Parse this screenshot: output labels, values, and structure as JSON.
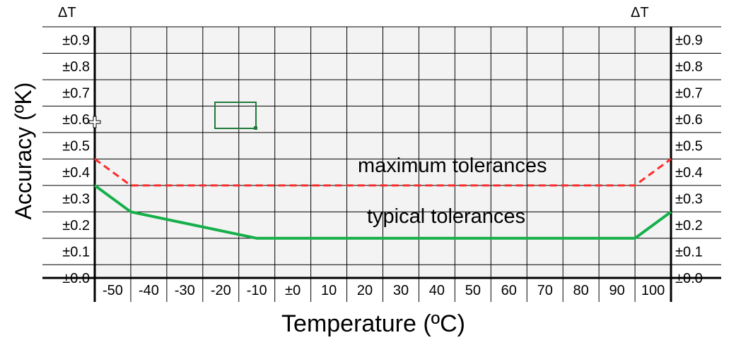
{
  "chart_data": {
    "type": "line",
    "xlabel": "Temperature (ºC)",
    "ylabel": "Accuracy (ºK)",
    "delta_label_left": "ΔT",
    "delta_label_right": "ΔT",
    "x_ticks": [
      "-50",
      "-40",
      "-30",
      "-20",
      "-10",
      "±0",
      "10",
      "20",
      "30",
      "40",
      "50",
      "60",
      "70",
      "80",
      "90",
      "100"
    ],
    "y_ticks": [
      "±0.0",
      "±0.1",
      "±0.2",
      "±0.3",
      "±0.4",
      "±0.5",
      "±0.6",
      "±0.7",
      "±0.8",
      "±0.9"
    ],
    "xlim": [
      -55,
      105
    ],
    "ylim": [
      0,
      0.95
    ],
    "grid": true,
    "series": [
      {
        "name": "maximum tolerances",
        "style": "dashed",
        "color": "#ff2a2a",
        "x": [
          -55,
          -45,
          95,
          105
        ],
        "y": [
          0.45,
          0.35,
          0.35,
          0.45
        ]
      },
      {
        "name": "typical tolerances",
        "style": "solid",
        "color": "#16b04a",
        "x": [
          -55,
          -45,
          -10,
          95,
          105
        ],
        "y": [
          0.35,
          0.25,
          0.15,
          0.15,
          0.25
        ]
      }
    ],
    "colors": {
      "grid": "#000000",
      "plot_background": "#f3f3f3",
      "selection_box": "#1f7a3a"
    }
  }
}
